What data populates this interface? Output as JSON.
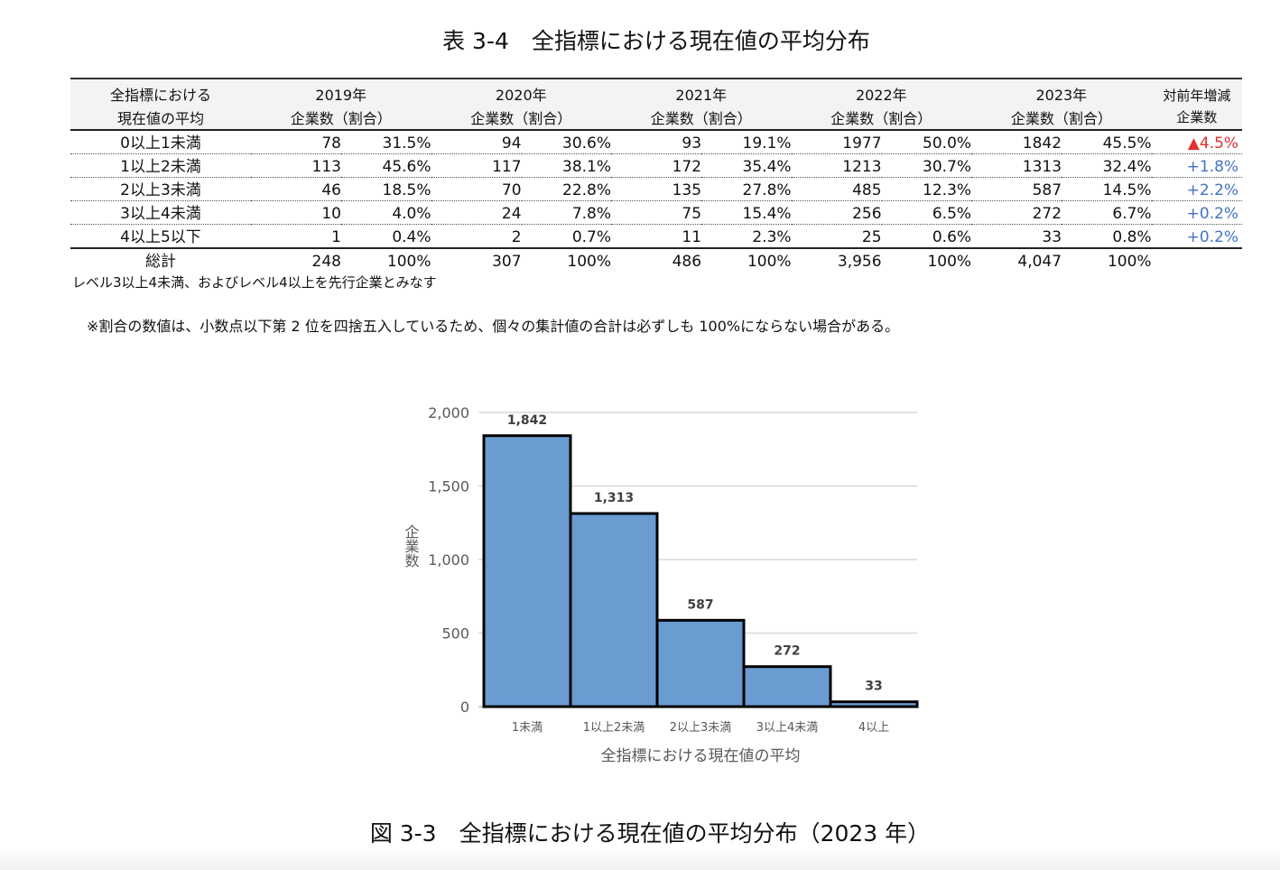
{
  "table": {
    "title": "表 3-4　全指標における現在値の平均分布",
    "header": {
      "label_line1": "全指標における",
      "label_line2": "現在値の平均",
      "years": [
        "2019年",
        "2020年",
        "2021年",
        "2022年",
        "2023年"
      ],
      "sub": "企業数（割合）",
      "change_line1": "対前年増減",
      "change_line2": "企業数"
    },
    "rows": [
      {
        "label": "0以上1未満",
        "cells": [
          "78",
          "31.5%",
          "94",
          "30.6%",
          "93",
          "19.1%",
          "1977",
          "50.0%",
          "1842",
          "45.5%"
        ],
        "change": "▲4.5%",
        "change_type": "neg"
      },
      {
        "label": "1以上2未満",
        "cells": [
          "113",
          "45.6%",
          "117",
          "38.1%",
          "172",
          "35.4%",
          "1213",
          "30.7%",
          "1313",
          "32.4%"
        ],
        "change": "+1.8%",
        "change_type": "pos"
      },
      {
        "label": "2以上3未満",
        "cells": [
          "46",
          "18.5%",
          "70",
          "22.8%",
          "135",
          "27.8%",
          "485",
          "12.3%",
          "587",
          "14.5%"
        ],
        "change": "+2.2%",
        "change_type": "pos"
      },
      {
        "label": "3以上4未満",
        "cells": [
          "10",
          "4.0%",
          "24",
          "7.8%",
          "75",
          "15.4%",
          "256",
          "6.5%",
          "272",
          "6.7%"
        ],
        "change": "+0.2%",
        "change_type": "pos"
      },
      {
        "label": "4以上5以下",
        "cells": [
          "1",
          "0.4%",
          "2",
          "0.7%",
          "11",
          "2.3%",
          "25",
          "0.6%",
          "33",
          "0.8%"
        ],
        "change": "+0.2%",
        "change_type": "pos"
      }
    ],
    "total": {
      "label": "総計",
      "cells": [
        "248",
        "100%",
        "307",
        "100%",
        "486",
        "100%",
        "3,956",
        "100%",
        "4,047",
        "100%"
      ],
      "change": ""
    },
    "note1": "レベル3以上4未満、およびレベル4以上を先行企業とみなす",
    "note2": "※割合の数値は、小数点以下第 2 位を四捨五入しているため、個々の集計値の合計は必ずしも 100%にならない場合がある。",
    "colors": {
      "neg": "#e03030",
      "pos": "#4472c4"
    }
  },
  "chart_data": {
    "type": "bar",
    "categories": [
      "1未満",
      "1以上2未満",
      "2以上3未満",
      "3以上4未満",
      "4以上"
    ],
    "values": [
      1842,
      1313,
      587,
      272,
      33
    ],
    "data_labels": [
      "1,842",
      "1,313",
      "587",
      "272",
      "33"
    ],
    "xlabel": "全指標における現在値の平均",
    "ylabel": "企業数",
    "ylim": [
      0,
      2000
    ],
    "yticks": [
      0,
      500,
      1000,
      1500,
      2000
    ],
    "ytick_labels": [
      "0",
      "500",
      "1,000",
      "1,500",
      "2,000"
    ],
    "grid": true,
    "bar_color": "#6a9bd1",
    "bar_edge_color": "#000000"
  },
  "caption": "図 3-3　全指標における現在値の平均分布（2023 年）"
}
